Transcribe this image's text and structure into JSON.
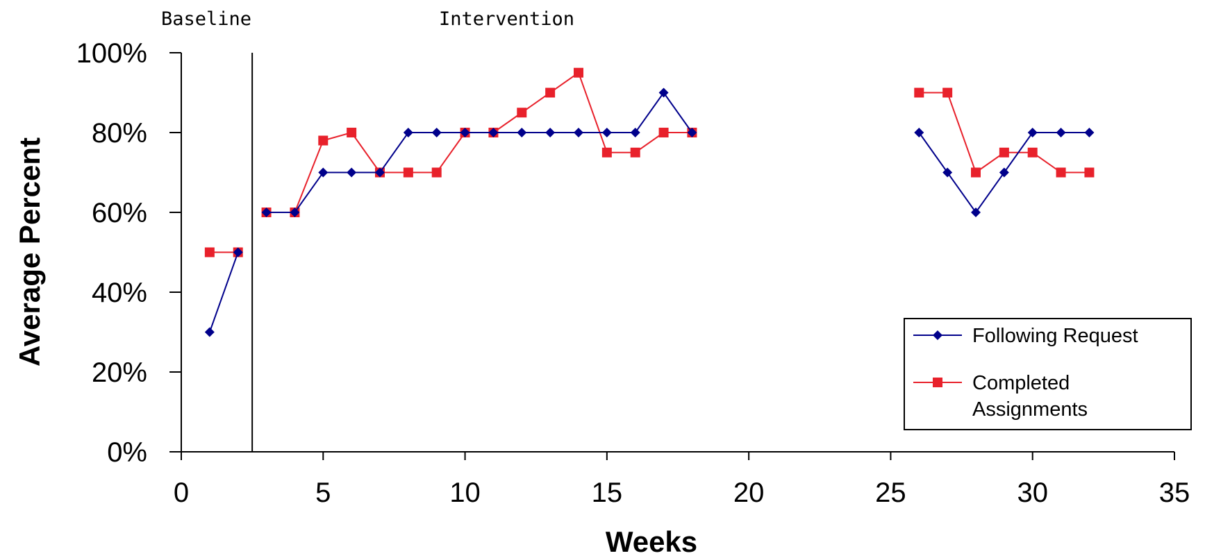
{
  "chart_data": {
    "type": "line",
    "title": "",
    "xlabel": "Weeks",
    "ylabel": "Average Percent",
    "xlim": [
      0,
      35
    ],
    "ylim": [
      0,
      100
    ],
    "x_ticks": [
      0,
      5,
      10,
      15,
      20,
      25,
      30,
      35
    ],
    "y_ticks": [
      0,
      20,
      40,
      60,
      80,
      100
    ],
    "y_tick_suffix": "%",
    "grid": false,
    "legend_position": "lower-right",
    "phase_change_after_week": 2.5,
    "phase_labels": [
      "Baseline",
      "Intervention"
    ],
    "series": [
      {
        "name": "Following Request",
        "color": "#00008b",
        "marker": "diamond",
        "segments": [
          [
            [
              1,
              30
            ],
            [
              2,
              50
            ]
          ],
          [
            [
              3,
              60
            ],
            [
              4,
              60
            ],
            [
              5,
              70
            ],
            [
              6,
              70
            ],
            [
              7,
              70
            ],
            [
              8,
              80
            ],
            [
              9,
              80
            ],
            [
              10,
              80
            ],
            [
              11,
              80
            ],
            [
              12,
              80
            ],
            [
              13,
              80
            ],
            [
              14,
              80
            ],
            [
              15,
              80
            ],
            [
              16,
              80
            ],
            [
              17,
              90
            ],
            [
              18,
              80
            ]
          ],
          [
            [
              26,
              80
            ],
            [
              27,
              70
            ],
            [
              28,
              60
            ],
            [
              29,
              70
            ],
            [
              30,
              80
            ],
            [
              31,
              80
            ],
            [
              32,
              80
            ]
          ]
        ]
      },
      {
        "name": "Completed Assignments",
        "color": "#e8212b",
        "marker": "square",
        "segments": [
          [
            [
              1,
              50
            ],
            [
              2,
              50
            ]
          ],
          [
            [
              3,
              60
            ],
            [
              4,
              60
            ],
            [
              5,
              78
            ],
            [
              6,
              80
            ],
            [
              7,
              70
            ],
            [
              8,
              70
            ],
            [
              9,
              70
            ],
            [
              10,
              80
            ],
            [
              11,
              80
            ],
            [
              12,
              85
            ],
            [
              13,
              90
            ],
            [
              14,
              95
            ],
            [
              15,
              75
            ],
            [
              16,
              75
            ],
            [
              17,
              80
            ],
            [
              18,
              80
            ]
          ],
          [
            [
              26,
              90
            ],
            [
              27,
              90
            ],
            [
              28,
              70
            ],
            [
              29,
              75
            ],
            [
              30,
              75
            ],
            [
              31,
              70
            ],
            [
              32,
              70
            ]
          ]
        ]
      }
    ],
    "legend_lines": [
      [
        "Following Request"
      ],
      [
        "Completed",
        "Assignments"
      ]
    ]
  }
}
